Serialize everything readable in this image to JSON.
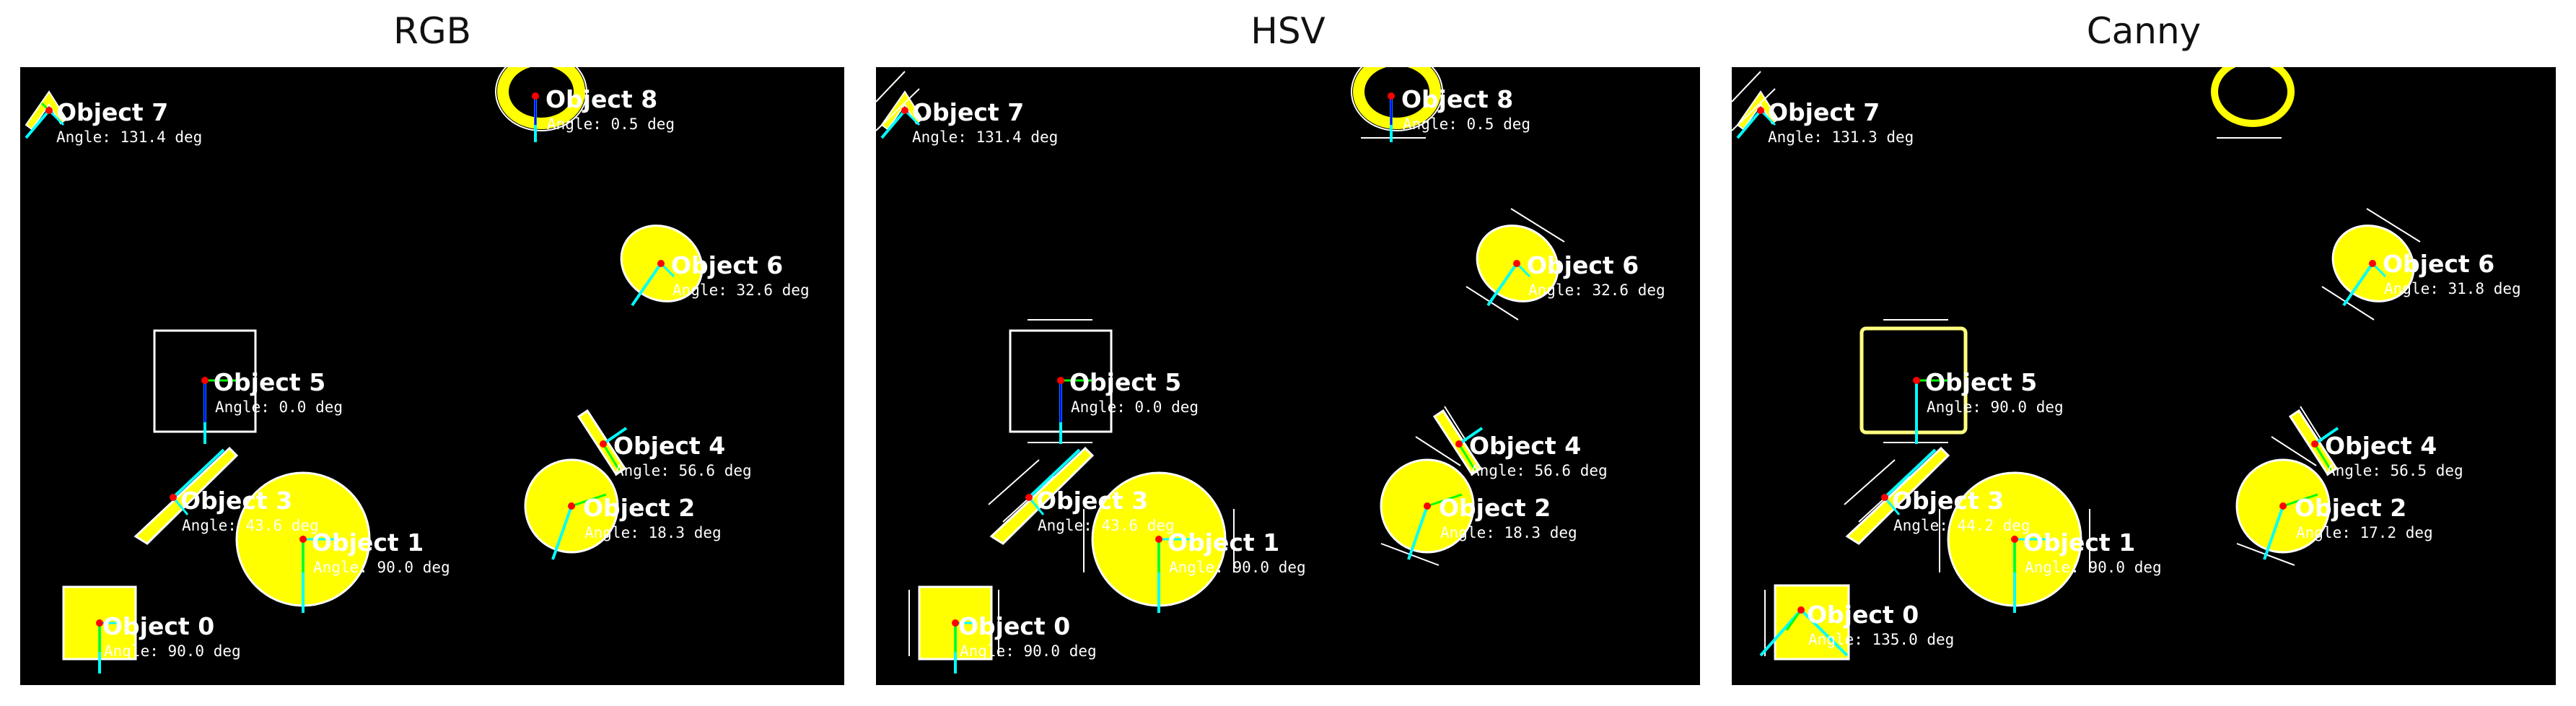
{
  "panels": [
    {
      "title": "RGB",
      "objects": [
        {
          "label": "Object 0",
          "angle_text": "Angle: 90.0 deg"
        },
        {
          "label": "Object 1",
          "angle_text": "Angle: 90.0 deg"
        },
        {
          "label": "Object 2",
          "angle_text": "Angle: 18.3 deg"
        },
        {
          "label": "Object 3",
          "angle_text": "Angle: 43.6 deg"
        },
        {
          "label": "Object 4",
          "angle_text": "Angle: 56.6 deg"
        },
        {
          "label": "Object 5",
          "angle_text": "Angle: 0.0 deg"
        },
        {
          "label": "Object 6",
          "angle_text": "Angle: 32.6 deg"
        },
        {
          "label": "Object 7",
          "angle_text": "Angle: 131.4 deg"
        },
        {
          "label": "Object 8",
          "angle_text": "Angle: 0.5 deg"
        }
      ]
    },
    {
      "title": "HSV",
      "objects": [
        {
          "label": "Object 0",
          "angle_text": "Angle: 90.0 deg"
        },
        {
          "label": "Object 1",
          "angle_text": "Angle: 90.0 deg"
        },
        {
          "label": "Object 2",
          "angle_text": "Angle: 18.3 deg"
        },
        {
          "label": "Object 3",
          "angle_text": "Angle: 43.6 deg"
        },
        {
          "label": "Object 4",
          "angle_text": "Angle: 56.6 deg"
        },
        {
          "label": "Object 5",
          "angle_text": "Angle: 0.0 deg"
        },
        {
          "label": "Object 6",
          "angle_text": "Angle: 32.6 deg"
        },
        {
          "label": "Object 7",
          "angle_text": "Angle: 131.4 deg"
        },
        {
          "label": "Object 8",
          "angle_text": "Angle: 0.5 deg"
        }
      ]
    },
    {
      "title": "Canny",
      "objects": [
        {
          "label": "Object 0",
          "angle_text": "Angle: 135.0 deg"
        },
        {
          "label": "Object 1",
          "angle_text": "Angle: 90.0 deg"
        },
        {
          "label": "Object 2",
          "angle_text": "Angle: 17.2 deg"
        },
        {
          "label": "Object 3",
          "angle_text": "Angle: 44.2 deg"
        },
        {
          "label": "Object 4",
          "angle_text": "Angle: 56.5 deg"
        },
        {
          "label": "Object 5",
          "angle_text": "Angle: 90.0 deg"
        },
        {
          "label": "Object 6",
          "angle_text": "Angle: 31.8 deg"
        },
        {
          "label": "Object 7",
          "angle_text": "Angle: 131.3 deg"
        }
      ]
    }
  ],
  "colors": {
    "background": "#000000",
    "shape_fill": "#ffff00",
    "outline": "#ffffff",
    "centroid": "#ff0000",
    "axis_primary": "#00ffff",
    "axis_secondary": "#00ff00",
    "axis_blue": "#0000ff"
  }
}
